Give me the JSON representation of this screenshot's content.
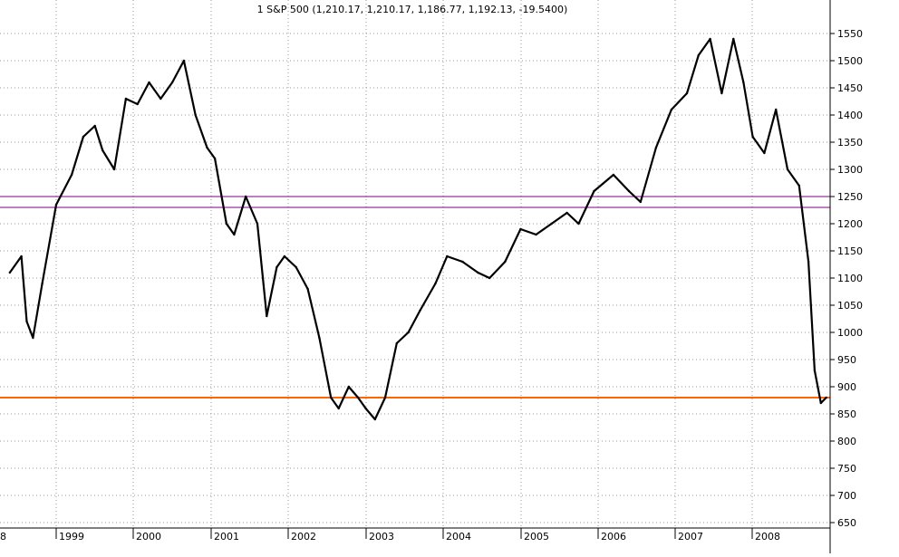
{
  "chart_data": {
    "type": "line",
    "title": "1 S&P 500 (1,210.17, 1,210.17, 1,186.77, 1,192.13, -19.5400)",
    "xlabel": "",
    "ylabel": "",
    "ylim": [
      640,
      1590
    ],
    "x_tick_labels": [
      "8",
      "1999",
      "2000",
      "2001",
      "2002",
      "2003",
      "2004",
      "2005",
      "2006",
      "2007",
      "2008"
    ],
    "y_tick_labels": [
      "650",
      "700",
      "750",
      "800",
      "850",
      "900",
      "950",
      "1000",
      "1050",
      "1100",
      "1150",
      "1200",
      "1250",
      "1300",
      "1350",
      "1400",
      "1450",
      "1500",
      "1550"
    ],
    "grid": true,
    "horizontal_levels": [
      {
        "value": 1250,
        "color": "#800080"
      },
      {
        "value": 1230,
        "color": "#800080"
      },
      {
        "value": 880,
        "color": "#ff6600"
      }
    ],
    "series": [
      {
        "values": [
          [
            1998.4,
            1110
          ],
          [
            1998.55,
            1140
          ],
          [
            1998.62,
            1020
          ],
          [
            1998.7,
            990
          ],
          [
            1998.82,
            1090
          ],
          [
            1999.0,
            1235
          ],
          [
            1999.2,
            1290
          ],
          [
            1999.35,
            1360
          ],
          [
            1999.5,
            1380
          ],
          [
            1999.6,
            1335
          ],
          [
            1999.75,
            1300
          ],
          [
            1999.9,
            1430
          ],
          [
            2000.05,
            1420
          ],
          [
            2000.2,
            1460
          ],
          [
            2000.35,
            1430
          ],
          [
            2000.5,
            1460
          ],
          [
            2000.65,
            1500
          ],
          [
            2000.8,
            1400
          ],
          [
            2000.95,
            1340
          ],
          [
            2001.05,
            1320
          ],
          [
            2001.2,
            1200
          ],
          [
            2001.3,
            1180
          ],
          [
            2001.45,
            1250
          ],
          [
            2001.6,
            1200
          ],
          [
            2001.72,
            1030
          ],
          [
            2001.85,
            1120
          ],
          [
            2001.95,
            1140
          ],
          [
            2002.1,
            1120
          ],
          [
            2002.25,
            1080
          ],
          [
            2002.4,
            990
          ],
          [
            2002.55,
            880
          ],
          [
            2002.65,
            860
          ],
          [
            2002.78,
            900
          ],
          [
            2002.9,
            880
          ],
          [
            2003.0,
            860
          ],
          [
            2003.12,
            840
          ],
          [
            2003.25,
            880
          ],
          [
            2003.4,
            980
          ],
          [
            2003.55,
            1000
          ],
          [
            2003.7,
            1040
          ],
          [
            2003.9,
            1090
          ],
          [
            2004.05,
            1140
          ],
          [
            2004.25,
            1130
          ],
          [
            2004.45,
            1110
          ],
          [
            2004.6,
            1100
          ],
          [
            2004.8,
            1130
          ],
          [
            2005.0,
            1190
          ],
          [
            2005.2,
            1180
          ],
          [
            2005.4,
            1200
          ],
          [
            2005.6,
            1220
          ],
          [
            2005.75,
            1200
          ],
          [
            2005.95,
            1260
          ],
          [
            2006.2,
            1290
          ],
          [
            2006.4,
            1260
          ],
          [
            2006.55,
            1240
          ],
          [
            2006.75,
            1340
          ],
          [
            2006.95,
            1410
          ],
          [
            2007.15,
            1440
          ],
          [
            2007.3,
            1510
          ],
          [
            2007.45,
            1540
          ],
          [
            2007.6,
            1440
          ],
          [
            2007.75,
            1540
          ],
          [
            2007.88,
            1460
          ],
          [
            2008.0,
            1360
          ],
          [
            2008.15,
            1330
          ],
          [
            2008.3,
            1410
          ],
          [
            2008.45,
            1300
          ],
          [
            2008.6,
            1270
          ],
          [
            2008.72,
            1130
          ],
          [
            2008.8,
            930
          ],
          [
            2008.88,
            870
          ],
          [
            2008.95,
            880
          ]
        ]
      }
    ]
  }
}
